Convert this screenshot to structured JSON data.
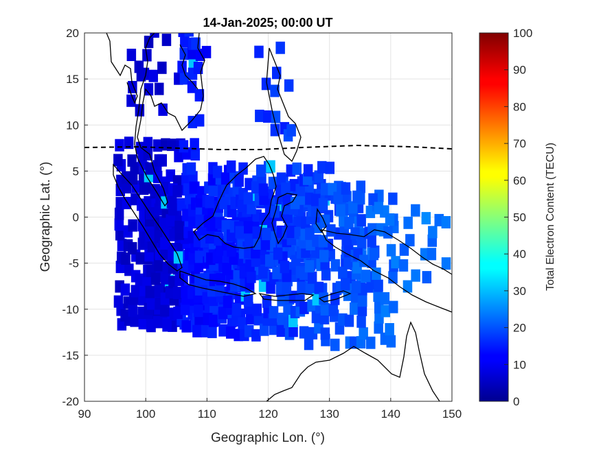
{
  "title": "14-Jan-2025; 00:00 UT",
  "xlabel": "Geographic Lon. (°)",
  "ylabel": "Geographic Lat. (°)",
  "xticks": [
    "90",
    "100",
    "110",
    "120",
    "130",
    "140",
    "150"
  ],
  "yticks": [
    "20",
    "15",
    "10",
    "5",
    "0",
    "-5",
    "-10",
    "-15",
    "-20"
  ],
  "colorbar": {
    "label": "Total Electron Content (TECU)",
    "ticks": [
      "0",
      "10",
      "20",
      "30",
      "40",
      "50",
      "60",
      "70",
      "80",
      "90",
      "100"
    ],
    "colormap": "jet",
    "range": [
      0,
      100
    ]
  },
  "map": {
    "lon_range": [
      90,
      150
    ],
    "lat_range": [
      -20,
      20
    ],
    "grid": true,
    "magnetic_equator_style": "dashed"
  }
}
